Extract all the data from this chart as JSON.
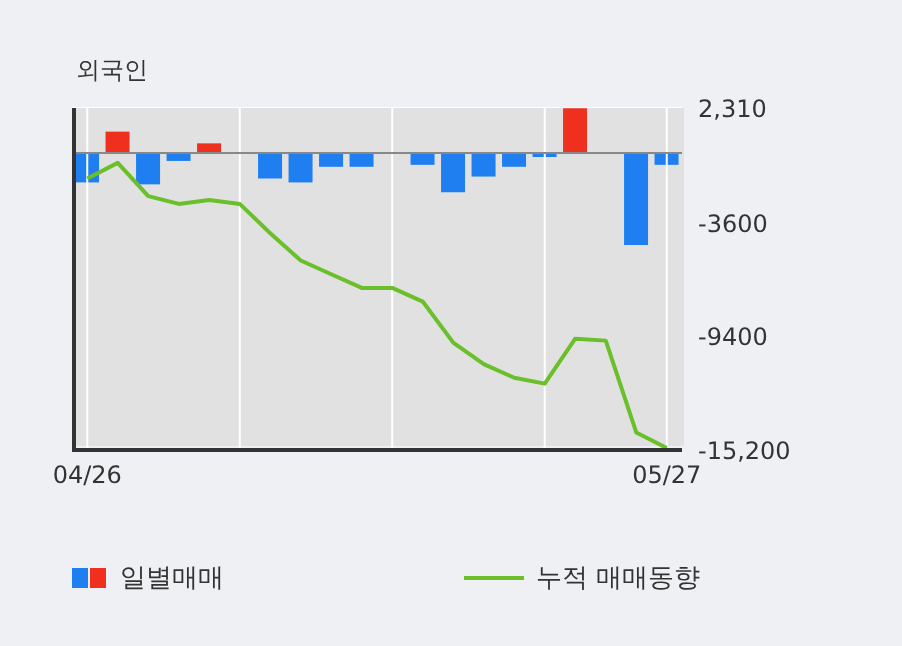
{
  "chart_data": {
    "type": "bar",
    "title": "외국인",
    "categories": [
      "04/26",
      null,
      null,
      null,
      null,
      null,
      null,
      null,
      null,
      null,
      null,
      null,
      null,
      null,
      null,
      null,
      null,
      null,
      null,
      "05/27"
    ],
    "series": [
      {
        "name": "일별매매",
        "colors": [
          "#1f7ff0",
          "#f0301f",
          "#1f7ff0",
          "#1f7ff0",
          "#f0301f",
          "#1f7ff0",
          "#1f7ff0",
          "#1f7ff0",
          "#1f7ff0",
          "#1f7ff0",
          "#1f7ff0",
          "#1f7ff0",
          "#1f7ff0",
          "#1f7ff0",
          "#1f7ff0",
          "#1f7ff0",
          "#f0301f",
          "#1f7ff0",
          "#1f7ff0",
          "#1f7ff0"
        ],
        "values": [
          -1500,
          1100,
          -1600,
          -400,
          500,
          null,
          -1300,
          -1500,
          -700,
          -700,
          null,
          -600,
          -2000,
          -1200,
          -700,
          -200,
          2300,
          null,
          -4700,
          -600
        ]
      },
      {
        "name": "누적 매매동향",
        "type": "line",
        "color": "#6abf2a",
        "values": [
          -1300,
          -500,
          -2200,
          -2600,
          -2400,
          -2600,
          -4100,
          -5500,
          -6200,
          -6900,
          -6900,
          -7600,
          -9700,
          -10800,
          -11500,
          -11800,
          -9500,
          -9600,
          -14300,
          -15100
        ]
      }
    ],
    "ylim": [
      -15200,
      2310
    ],
    "yticks": [
      {
        "value": 2310,
        "label": "2,310"
      },
      {
        "value": -3600,
        "label": "-3600"
      },
      {
        "value": -9400,
        "label": "-9400"
      },
      {
        "value": -15200,
        "label": "-15,200"
      }
    ],
    "ref_lines": [
      {
        "axis": "y",
        "value": 0,
        "color": "#888888"
      }
    ],
    "grid": true,
    "legend": "bottom",
    "marker": "none",
    "line_style": "solid"
  }
}
